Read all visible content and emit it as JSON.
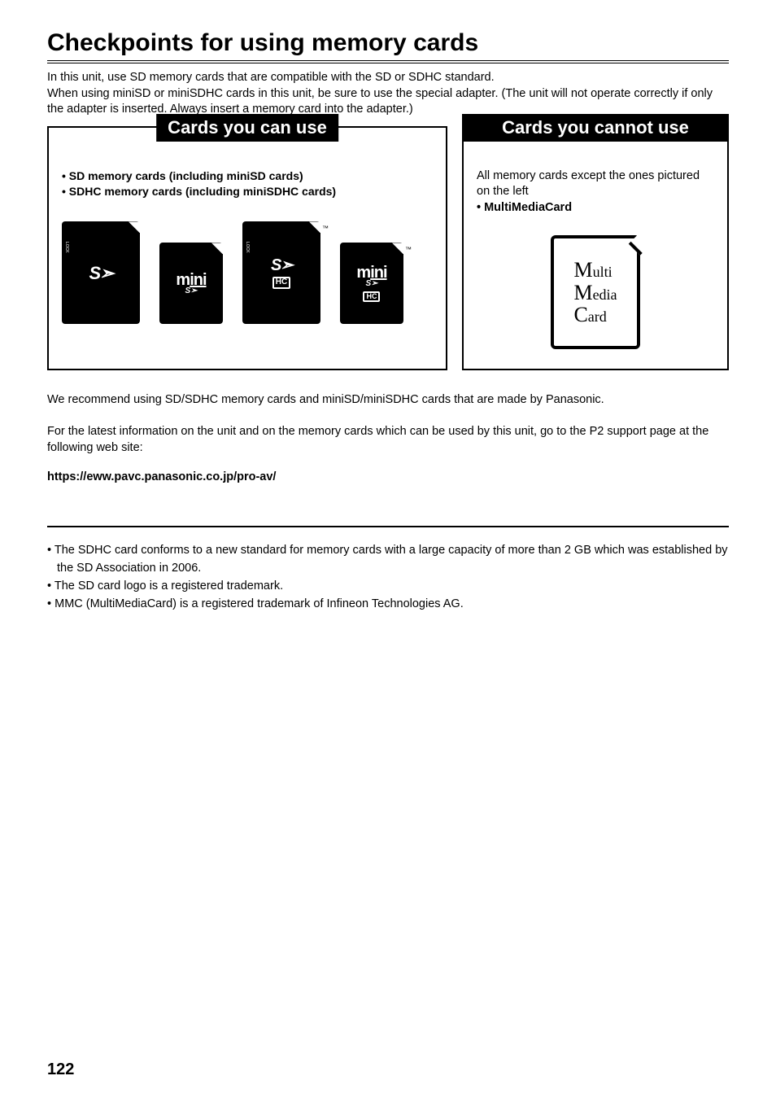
{
  "heading": "Checkpoints for using memory cards",
  "intro": "In this unit, use SD memory cards that are compatible with the SD or SDHC standard.\nWhen using miniSD or miniSDHC cards in this unit, be sure to use the special adapter. (The unit will not operate correctly if only the adapter is inserted. Always insert a memory card into the adapter.)",
  "left": {
    "title": "Cards you can use",
    "bullets": [
      "• SD memory cards (including miniSD cards)",
      "• SDHC memory cards (including miniSDHC cards)"
    ]
  },
  "right": {
    "title": "Cards you cannot use",
    "line1": "All memory cards except the ones pictured on the left",
    "bullet": "• MultiMediaCard"
  },
  "mmc": {
    "l1": "ulti",
    "l2": "edia",
    "l3": "ard",
    "c1": "M",
    "c2": "M",
    "c3": "C"
  },
  "cards": {
    "sd": "S➣",
    "hc": "HC",
    "mini": "miฺกฺi",
    "lock": "LOCK"
  },
  "para1": "We recommend using SD/SDHC memory cards and miniSD/miniSDHC cards that are made by Panasonic.",
  "para2": "For the latest information on the unit and on the memory cards which can be used by this unit, go to the P2 support page at the following web site:",
  "link": "https://eww.pavc.panasonic.co.jp/pro-av/",
  "footnotes": [
    "The SDHC card conforms to a new standard for memory cards with a large capacity of more than 2 GB which was established by the SD Association in 2006.",
    "The SD card logo is a registered trademark.",
    "MMC (MultiMediaCard) is a registered trademark of Infineon Technologies AG."
  ],
  "page": "122"
}
